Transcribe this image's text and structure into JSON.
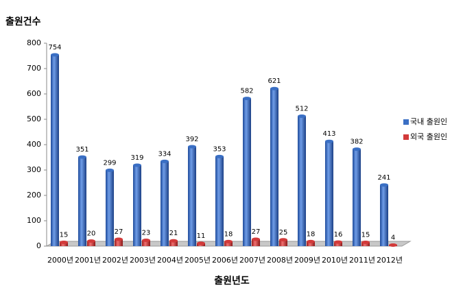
{
  "chart_data": {
    "type": "bar",
    "title": "출원건수",
    "x_label": "출원년도",
    "categories": [
      "2000년",
      "2001년",
      "2002년",
      "2003년",
      "2004년",
      "2005년",
      "2006년",
      "2007년",
      "2008년",
      "2009년",
      "2010년",
      "2011년",
      "2012년"
    ],
    "series": [
      {
        "name": "국내 출원인",
        "color": "#3a6fc4",
        "values": [
          754,
          351,
          299,
          319,
          334,
          392,
          353,
          582,
          621,
          512,
          413,
          382,
          241
        ]
      },
      {
        "name": "외국 출원인",
        "color": "#d23a3a",
        "values": [
          15,
          20,
          27,
          23,
          21,
          11,
          18,
          27,
          25,
          18,
          16,
          15,
          4
        ]
      }
    ],
    "ylim": [
      0,
      800
    ],
    "yticks": [
      0,
      100,
      200,
      300,
      400,
      500,
      600,
      700,
      800
    ],
    "legend": "right"
  }
}
